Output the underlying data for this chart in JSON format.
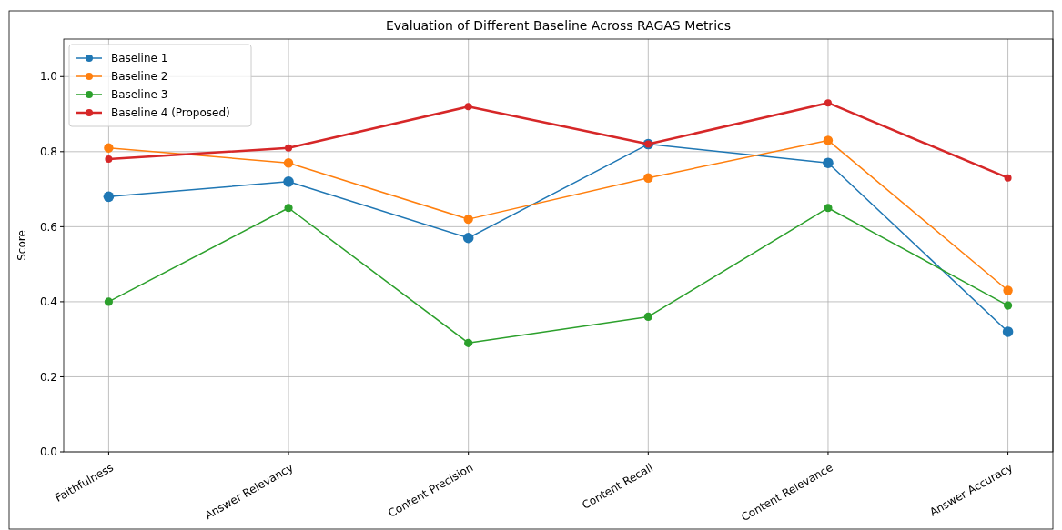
{
  "chart_data": {
    "type": "line",
    "title": "Evaluation of Different Baseline Across RAGAS Metrics",
    "ylabel": "Score",
    "categories": [
      "Faithfulness",
      "Answer Relevancy",
      "Content Precision",
      "Content Recall",
      "Content Relevance",
      "Answer Accuracy"
    ],
    "series": [
      {
        "name": "Baseline 1",
        "color": "#1f77b4",
        "values": [
          0.68,
          0.72,
          0.57,
          0.82,
          0.77,
          0.32
        ]
      },
      {
        "name": "Baseline 2",
        "color": "#ff7f0e",
        "values": [
          0.81,
          0.77,
          0.62,
          0.73,
          0.83,
          0.43
        ]
      },
      {
        "name": "Baseline 3",
        "color": "#2ca02c",
        "values": [
          0.4,
          0.65,
          0.29,
          0.36,
          0.65,
          0.39
        ]
      },
      {
        "name": "Baseline 4 (Proposed)",
        "color": "#d62728",
        "values": [
          0.78,
          0.81,
          0.92,
          0.82,
          0.93,
          0.73
        ]
      }
    ],
    "ylim": [
      0,
      1.1
    ],
    "yticks": [
      {
        "value": 0,
        "label": "0.0"
      },
      0.2,
      0.4,
      0.6,
      0.8,
      {
        "value": 1,
        "label": "1.0"
      }
    ],
    "grid": true,
    "legend": "top left",
    "marker": "circle",
    "line_style": "solid"
  }
}
